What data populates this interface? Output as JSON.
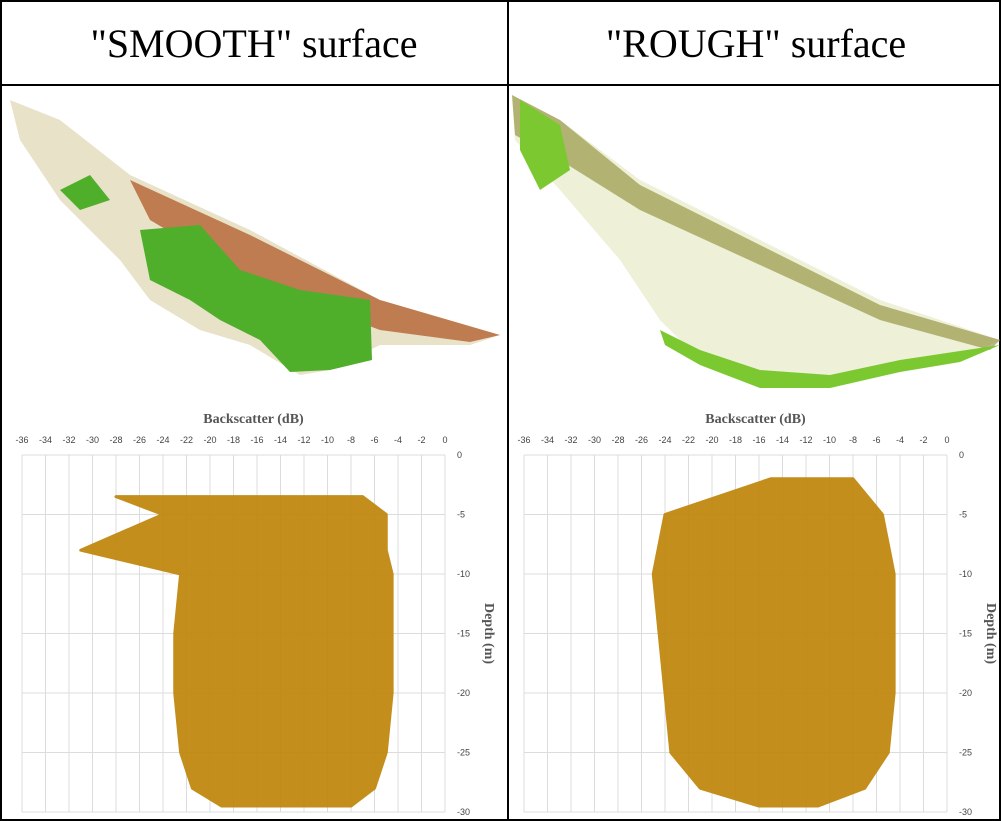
{
  "chart_data": [
    {
      "type": "density",
      "title": "\"SMOOTH\" surface",
      "xlabel": "Backscatter (dB)",
      "ylabel": "Depth (m)",
      "color": "#c0880f",
      "xlim": [
        -36,
        0
      ],
      "ylim": [
        -30,
        0
      ],
      "xticks": [
        -36,
        -34,
        -32,
        -30,
        -28,
        -26,
        -24,
        -22,
        -20,
        -18,
        -16,
        -14,
        -12,
        -10,
        -8,
        -6,
        -4,
        -2,
        0
      ],
      "yticks": [
        0,
        -5,
        -10,
        -15,
        -20,
        -25,
        -30
      ],
      "grid": true,
      "depth": [
        -3.5,
        -5,
        -8,
        -10,
        -15,
        -20,
        -25,
        -28,
        -29.5
      ],
      "x_left": [
        -28,
        -24,
        -31,
        -22.5,
        -23,
        -23,
        -22.5,
        -21.5,
        -19
      ],
      "x_right": [
        -7,
        -5,
        -5,
        -4.5,
        -4.5,
        -4.5,
        -5,
        -6,
        -8
      ]
    },
    {
      "type": "density",
      "title": "\"ROUGH\" surface",
      "xlabel": "Backscatter (dB)",
      "ylabel": "Depth (m)",
      "color": "#c0880f",
      "xlim": [
        -36,
        0
      ],
      "ylim": [
        -30,
        0
      ],
      "xticks": [
        -36,
        -34,
        -32,
        -30,
        -28,
        -26,
        -24,
        -22,
        -20,
        -18,
        -16,
        -14,
        -12,
        -10,
        -8,
        -6,
        -4,
        -2,
        0
      ],
      "yticks": [
        0,
        -5,
        -10,
        -15,
        -20,
        -25,
        -30
      ],
      "grid": true,
      "depth": [
        -2,
        -5,
        -10,
        -15,
        -20,
        -25,
        -28,
        -29.5
      ],
      "x_left": [
        -15,
        -24,
        -25,
        -24.5,
        -24,
        -23.5,
        -21,
        -16
      ],
      "x_right": [
        -8,
        -5.5,
        -4.5,
        -4.5,
        -4.5,
        -5,
        -7,
        -11
      ]
    }
  ]
}
